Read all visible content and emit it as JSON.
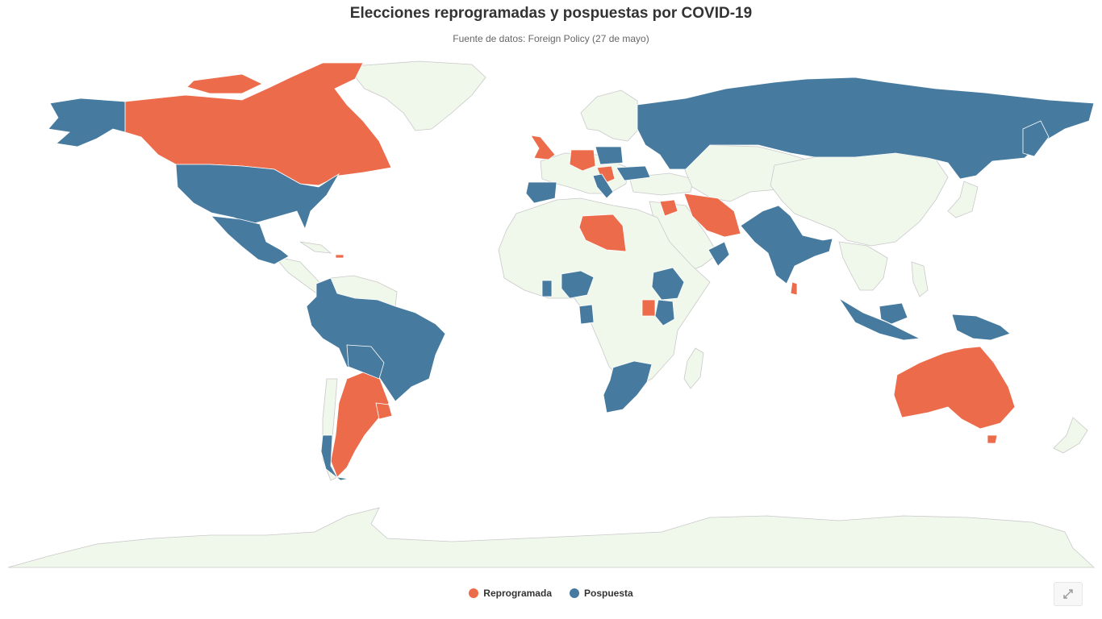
{
  "title": "Elecciones reprogramadas y pospuestas por COVID-19",
  "subtitle": "Fuente de datos: Foreign Policy (27 de mayo)",
  "legend": [
    {
      "label": "Reprogramada",
      "color": "#ec6b4b"
    },
    {
      "label": "Pospuesta",
      "color": "#467b9f"
    }
  ],
  "colors": {
    "land": "#f0f8ec",
    "rescheduled": "#ec6b4b",
    "postponed": "#467b9f"
  },
  "zoom_button": {
    "icon": "expand-icon"
  }
}
